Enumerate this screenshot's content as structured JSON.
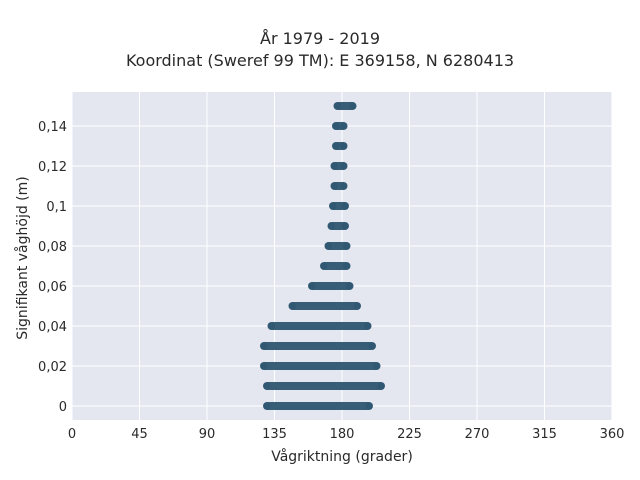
{
  "chart_data": {
    "type": "scatter",
    "title": "År 1979 - 2019",
    "subtitle": "Koordinat (Sweref 99 TM): E 369158, N 6280413",
    "xlabel": "Vågriktning (grader)",
    "ylabel": "Signifikant våghöjd (m)",
    "xlim": [
      0,
      360
    ],
    "ylim": [
      -0.007,
      0.157
    ],
    "x_ticks": [
      0,
      45,
      90,
      135,
      180,
      225,
      270,
      315,
      360
    ],
    "y_ticks": [
      0,
      0.02,
      0.04,
      0.06,
      0.08,
      0.1,
      0.12,
      0.14
    ],
    "y_tick_labels": [
      "0",
      "0,02",
      "0,04",
      "0,06",
      "0,08",
      "0,1",
      "0,12",
      "0,14"
    ],
    "grid": true,
    "marker_color": "#2e5670",
    "background_color": "#e5e7f0",
    "bands": [
      {
        "height": 0.0,
        "direction_min": 130,
        "direction_max": 198
      },
      {
        "height": 0.01,
        "direction_min": 130,
        "direction_max": 206
      },
      {
        "height": 0.02,
        "direction_min": 128,
        "direction_max": 203
      },
      {
        "height": 0.03,
        "direction_min": 128,
        "direction_max": 200
      },
      {
        "height": 0.04,
        "direction_min": 133,
        "direction_max": 197
      },
      {
        "height": 0.05,
        "direction_min": 147,
        "direction_max": 190
      },
      {
        "height": 0.06,
        "direction_min": 160,
        "direction_max": 185
      },
      {
        "height": 0.07,
        "direction_min": 168,
        "direction_max": 183
      },
      {
        "height": 0.08,
        "direction_min": 171,
        "direction_max": 183
      },
      {
        "height": 0.09,
        "direction_min": 173,
        "direction_max": 182
      },
      {
        "height": 0.1,
        "direction_min": 174,
        "direction_max": 182
      },
      {
        "height": 0.11,
        "direction_min": 175,
        "direction_max": 181
      },
      {
        "height": 0.12,
        "direction_min": 175,
        "direction_max": 181
      },
      {
        "height": 0.13,
        "direction_min": 176,
        "direction_max": 181
      },
      {
        "height": 0.14,
        "direction_min": 176,
        "direction_max": 181
      },
      {
        "height": 0.15,
        "direction_min": 177,
        "direction_max": 187
      }
    ]
  }
}
